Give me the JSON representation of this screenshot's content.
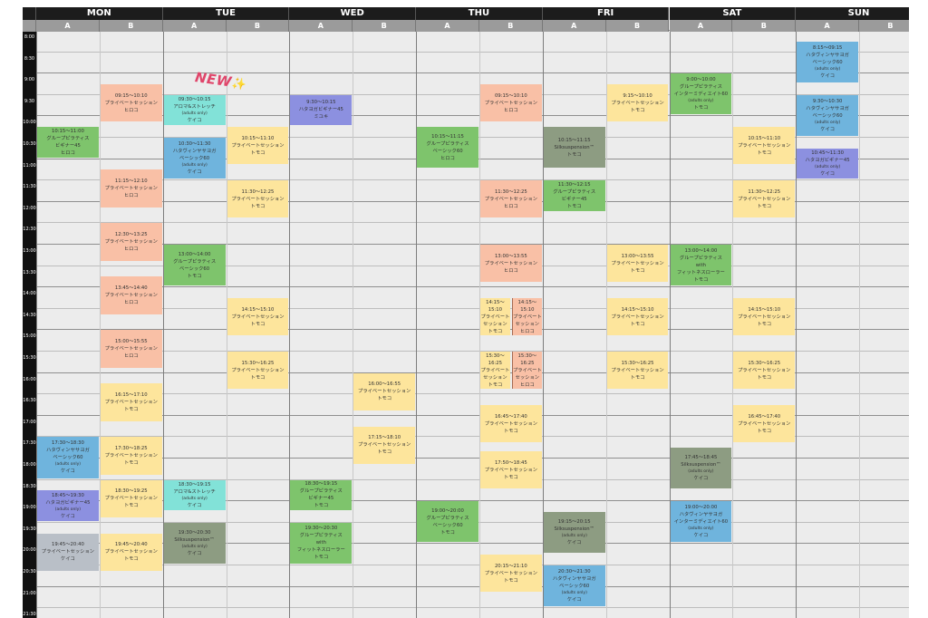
{
  "days": [
    "MON",
    "TUE",
    "WED",
    "THU",
    "FRI",
    "SAT",
    "SUN"
  ],
  "sub_columns": [
    "A",
    "B"
  ],
  "times": [
    "8:00",
    "8:30",
    "9:00",
    "9:30",
    "10:00",
    "10:30",
    "11:00",
    "11:30",
    "12:00",
    "12:30",
    "13:00",
    "13:30",
    "14:00",
    "14:30",
    "15:00",
    "15:30",
    "16:00",
    "16:30",
    "17:00",
    "17:30",
    "18:00",
    "18:30",
    "19:00",
    "19:30",
    "20:00",
    "20:30",
    "21:00",
    "21:30"
  ],
  "badge": {
    "text": "NEW",
    "sparkle": "✨"
  },
  "colors": {
    "salmon": "#f9c0a6",
    "yellow": "#fde59c",
    "green": "#7ec46c",
    "blue": "#6fb4dd",
    "purple": "#8c90e0",
    "teal": "#82e2d8",
    "silk": "#8d9c82",
    "gray": "#b9bfc7"
  },
  "events": [
    {
      "day": 0,
      "col": "A",
      "color": "green",
      "time": "10:15～11:00",
      "lines": [
        "グループピラティス",
        "ビギナー45",
        "ヒロコ"
      ]
    },
    {
      "day": 0,
      "col": "A",
      "color": "blue",
      "time": "17:30～18:30",
      "lines": [
        "ハタヴィンヤサヨガ",
        "ベーシック60",
        "(adults only)",
        "ケイコ"
      ]
    },
    {
      "day": 0,
      "col": "A",
      "color": "purple",
      "time": "18:45～19:30",
      "lines": [
        "ハタヨガビギナー45",
        "(adults only)",
        "ケイコ"
      ]
    },
    {
      "day": 0,
      "col": "A",
      "color": "gray",
      "time": "19:45～20:40",
      "lines": [
        "プライベートセッション",
        "ケイコ"
      ]
    },
    {
      "day": 0,
      "col": "B",
      "color": "salmon",
      "time": "09:15～10:10",
      "lines": [
        "プライベートセッション",
        "ヒロコ"
      ]
    },
    {
      "day": 0,
      "col": "B",
      "color": "salmon",
      "time": "11:15～12:10",
      "lines": [
        "プライベートセッション",
        "ヒロコ"
      ]
    },
    {
      "day": 0,
      "col": "B",
      "color": "salmon",
      "time": "12:30～13:25",
      "lines": [
        "プライベートセッション",
        "ヒロコ"
      ]
    },
    {
      "day": 0,
      "col": "B",
      "color": "salmon",
      "time": "13:45～14:40",
      "lines": [
        "プライベートセッション",
        "ヒロコ"
      ]
    },
    {
      "day": 0,
      "col": "B",
      "color": "salmon",
      "time": "15:00～15:55",
      "lines": [
        "プライベートセッション",
        "ヒロコ"
      ]
    },
    {
      "day": 0,
      "col": "B",
      "color": "yellow",
      "time": "16:15～17:10",
      "lines": [
        "プライベートセッション",
        "トモコ"
      ]
    },
    {
      "day": 0,
      "col": "B",
      "color": "yellow",
      "time": "17:30～18:25",
      "lines": [
        "プライベートセッション",
        "トモコ"
      ]
    },
    {
      "day": 0,
      "col": "B",
      "color": "yellow",
      "time": "18:30～19:25",
      "lines": [
        "プライベートセッション",
        "トモコ"
      ]
    },
    {
      "day": 0,
      "col": "B",
      "color": "yellow",
      "time": "19:45～20:40",
      "lines": [
        "プライベートセッション",
        "トモコ"
      ]
    },
    {
      "day": 1,
      "col": "A",
      "color": "teal",
      "time": "09:30～10:15",
      "lines": [
        "アロマ&ストレッチ",
        "(adults only)",
        "ケイコ"
      ]
    },
    {
      "day": 1,
      "col": "A",
      "color": "blue",
      "time": "10:30～11:30",
      "lines": [
        "ハタヴィンヤサヨガ",
        "ベーシック60",
        "(adults only)",
        "ケイコ"
      ]
    },
    {
      "day": 1,
      "col": "A",
      "color": "green",
      "time": "13:00～14:00",
      "lines": [
        "グループピラティス",
        "ベーシック60",
        "トモコ"
      ]
    },
    {
      "day": 1,
      "col": "A",
      "color": "teal",
      "time": "18:30～19:15",
      "lines": [
        "アロマ&ストレッチ",
        "(adults only)",
        "ケイコ"
      ]
    },
    {
      "day": 1,
      "col": "A",
      "color": "silk",
      "time": "19:30～20:30",
      "lines": [
        "Silksuspension™",
        "(adults only)",
        "ケイコ"
      ]
    },
    {
      "day": 1,
      "col": "B",
      "color": "yellow",
      "time": "10:15～11:10",
      "lines": [
        "プライベートセッション",
        "トモコ"
      ]
    },
    {
      "day": 1,
      "col": "B",
      "color": "yellow",
      "time": "11:30～12:25",
      "lines": [
        "プライベートセッション",
        "トモコ"
      ]
    },
    {
      "day": 1,
      "col": "B",
      "color": "yellow",
      "time": "14:15～15:10",
      "lines": [
        "プライベートセッション",
        "トモコ"
      ]
    },
    {
      "day": 1,
      "col": "B",
      "color": "yellow",
      "time": "15:30～16:25",
      "lines": [
        "プライベートセッション",
        "トモコ"
      ]
    },
    {
      "day": 2,
      "col": "A",
      "color": "purple",
      "time": "9:30～10:15",
      "lines": [
        "ハタヨガビギナー45",
        "ミユキ"
      ]
    },
    {
      "day": 2,
      "col": "A",
      "color": "green",
      "time": "18:30～19:15",
      "lines": [
        "グループピラティス",
        "ビギナー45",
        "トモコ"
      ]
    },
    {
      "day": 2,
      "col": "A",
      "color": "green",
      "time": "19:30～20:30",
      "lines": [
        "グループピラティス",
        "with",
        "フィットネスローラー",
        "トモコ"
      ]
    },
    {
      "day": 2,
      "col": "B",
      "color": "yellow",
      "time": "16:00～16:55",
      "lines": [
        "プライベートセッション",
        "トモコ"
      ]
    },
    {
      "day": 2,
      "col": "B",
      "color": "yellow",
      "time": "17:15～18:10",
      "lines": [
        "プライベートセッション",
        "トモコ"
      ]
    },
    {
      "day": 3,
      "col": "A",
      "color": "green",
      "time": "10:15～11:15",
      "lines": [
        "グループピラティス",
        "ベーシック60",
        "ヒロコ"
      ]
    },
    {
      "day": 3,
      "col": "A",
      "color": "green",
      "time": "19:00～20:00",
      "lines": [
        "グループピラティス",
        "ベーシック60",
        "トモコ"
      ]
    },
    {
      "day": 3,
      "col": "B",
      "color": "salmon",
      "time": "09:15～10:10",
      "lines": [
        "プライベートセッション",
        "ヒロコ"
      ]
    },
    {
      "day": 3,
      "col": "B",
      "color": "salmon",
      "time": "11:30～12:25",
      "lines": [
        "プライベートセッション",
        "ヒロコ"
      ]
    },
    {
      "day": 3,
      "col": "B",
      "color": "salmon",
      "time": "13:00～13:55",
      "lines": [
        "プライベートセッション",
        "ヒロコ"
      ]
    },
    {
      "day": 3,
      "col": "B1",
      "color": "yellow",
      "time": "14:15～15:10",
      "lines": [
        "プライベート",
        "セッション",
        "トモコ"
      ]
    },
    {
      "day": 3,
      "col": "B2",
      "color": "salmon",
      "time": "14:15～15:10",
      "lines": [
        "プライベート",
        "セッション",
        "ヒロコ"
      ]
    },
    {
      "day": 3,
      "col": "B1",
      "color": "yellow",
      "time": "15:30～16:25",
      "lines": [
        "プライベート",
        "セッション",
        "トモコ"
      ]
    },
    {
      "day": 3,
      "col": "B2",
      "color": "salmon",
      "time": "15:30～16:25",
      "lines": [
        "プライベート",
        "セッション",
        "ヒロコ"
      ]
    },
    {
      "day": 3,
      "col": "B",
      "color": "yellow",
      "time": "16:45～17:40",
      "lines": [
        "プライベートセッション",
        "トモコ"
      ]
    },
    {
      "day": 3,
      "col": "B",
      "color": "yellow",
      "time": "17:50～18:45",
      "lines": [
        "プライベートセッション",
        "トモコ"
      ]
    },
    {
      "day": 3,
      "col": "B",
      "color": "yellow",
      "time": "20:15～21:10",
      "lines": [
        "プライベートセッション",
        "トモコ"
      ]
    },
    {
      "day": 4,
      "col": "A",
      "color": "silk",
      "time": "10:15～11:15",
      "lines": [
        "Silksuspension™",
        "トモコ"
      ]
    },
    {
      "day": 4,
      "col": "A",
      "color": "green",
      "time": "11:30～12:15",
      "lines": [
        "グループピラティス",
        "ビギナー45",
        "トモコ"
      ]
    },
    {
      "day": 4,
      "col": "A",
      "color": "silk",
      "time": "19:15～20:15",
      "lines": [
        "Silksuspension™",
        "(adults only)",
        "ケイコ"
      ]
    },
    {
      "day": 4,
      "col": "A",
      "color": "blue",
      "time": "20:30～21:30",
      "lines": [
        "ハタヴィンヤサヨガ",
        "ベーシック60",
        "(adults only)",
        "ケイコ"
      ]
    },
    {
      "day": 4,
      "col": "B",
      "color": "yellow",
      "time": "9:15～10:10",
      "lines": [
        "プライベートセッション",
        "トモコ"
      ]
    },
    {
      "day": 4,
      "col": "B",
      "color": "yellow",
      "time": "13:00～13:55",
      "lines": [
        "プライベートセッション",
        "トモコ"
      ]
    },
    {
      "day": 4,
      "col": "B",
      "color": "yellow",
      "time": "14:15～15:10",
      "lines": [
        "プライベートセッション",
        "トモコ"
      ]
    },
    {
      "day": 4,
      "col": "B",
      "color": "yellow",
      "time": "15:30～16:25",
      "lines": [
        "プライベートセッション",
        "トモコ"
      ]
    },
    {
      "day": 5,
      "col": "A",
      "color": "green",
      "time": "9:00～10:00",
      "lines": [
        "グループピラティス",
        "インターミディエイト60",
        "(adults only)",
        "トモコ"
      ]
    },
    {
      "day": 5,
      "col": "A",
      "color": "green",
      "time": "13:00～14:00",
      "lines": [
        "グループピラティス",
        "with",
        "フィットネスローラー",
        "トモコ"
      ]
    },
    {
      "day": 5,
      "col": "A",
      "color": "silk",
      "time": "17:45～18:45",
      "lines": [
        "Silksuspension™",
        "(adults only)",
        "ケイコ"
      ]
    },
    {
      "day": 5,
      "col": "A",
      "color": "blue",
      "time": "19:00～20:00",
      "lines": [
        "ハタヴィンヤサヨガ",
        "インターミディエイト60",
        "(adults only)",
        "ケイコ"
      ]
    },
    {
      "day": 5,
      "col": "B",
      "color": "yellow",
      "time": "10:15～11:10",
      "lines": [
        "プライベートセッション",
        "トモコ"
      ]
    },
    {
      "day": 5,
      "col": "B",
      "color": "yellow",
      "time": "11:30～12:25",
      "lines": [
        "プライベートセッション",
        "トモコ"
      ]
    },
    {
      "day": 5,
      "col": "B",
      "color": "yellow",
      "time": "14:15～15:10",
      "lines": [
        "プライベートセッション",
        "トモコ"
      ]
    },
    {
      "day": 5,
      "col": "B",
      "color": "yellow",
      "time": "15:30～16:25",
      "lines": [
        "プライベートセッション",
        "トモコ"
      ]
    },
    {
      "day": 5,
      "col": "B",
      "color": "yellow",
      "time": "16:45～17:40",
      "lines": [
        "プライベートセッション",
        "トモコ"
      ]
    },
    {
      "day": 6,
      "col": "A",
      "color": "blue",
      "time": "8:15～09:15",
      "lines": [
        "ハタヴィンヤサヨガ",
        "ベーシック60",
        "(adults only)",
        "ケイコ"
      ]
    },
    {
      "day": 6,
      "col": "A",
      "color": "blue",
      "time": "9:30～10:30",
      "lines": [
        "ハタヴィンヤサヨガ",
        "ベーシック60",
        "(adults only)",
        "ケイコ"
      ]
    },
    {
      "day": 6,
      "col": "A",
      "color": "purple",
      "time": "10:45～11:30",
      "lines": [
        "ハタヨガビギナー45",
        "(adults only)",
        "ケイコ"
      ]
    }
  ]
}
